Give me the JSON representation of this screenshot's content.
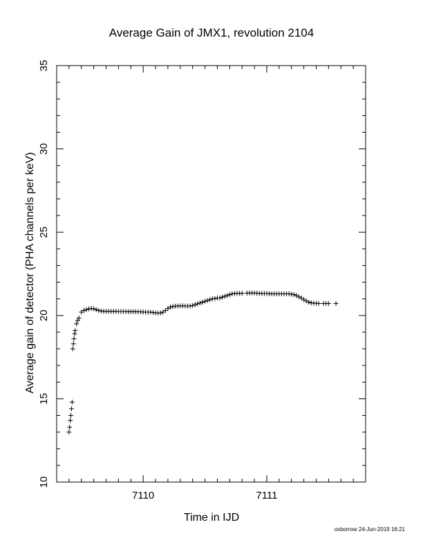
{
  "chart_data": {
    "type": "scatter",
    "title": "Average Gain of JMX1, revolution 2104",
    "xlabel": "Time in IJD",
    "ylabel": "Average gain of detector (PHA channels per keV)",
    "xlim": [
      7109.3,
      7111.8
    ],
    "ylim": [
      10,
      35
    ],
    "x_major_ticks": [
      7110,
      7111
    ],
    "x_minor_tick_step": 0.1,
    "y_major_ticks": [
      10,
      15,
      20,
      25,
      30,
      35
    ],
    "y_minor_tick_step": 1,
    "marker": "plus",
    "grid": false,
    "series": [
      {
        "points": [
          [
            7109.4,
            13.0
          ],
          [
            7109.405,
            13.3
          ],
          [
            7109.41,
            13.7
          ],
          [
            7109.415,
            14.0
          ],
          [
            7109.42,
            14.4
          ],
          [
            7109.425,
            14.8
          ],
          [
            7109.43,
            18.0
          ],
          [
            7109.435,
            18.3
          ],
          [
            7109.44,
            18.6
          ],
          [
            7109.445,
            18.9
          ],
          [
            7109.45,
            19.1
          ],
          [
            7109.46,
            19.5
          ],
          [
            7109.47,
            19.7
          ],
          [
            7109.48,
            19.85
          ],
          [
            7109.5,
            20.2
          ],
          [
            7109.52,
            20.3
          ],
          [
            7109.54,
            20.35
          ],
          [
            7109.56,
            20.4
          ],
          [
            7109.58,
            20.42
          ],
          [
            7109.6,
            20.4
          ],
          [
            7109.62,
            20.35
          ],
          [
            7109.64,
            20.3
          ],
          [
            7109.66,
            20.27
          ],
          [
            7109.68,
            20.25
          ],
          [
            7109.7,
            20.25
          ],
          [
            7109.72,
            20.25
          ],
          [
            7109.74,
            20.25
          ],
          [
            7109.76,
            20.25
          ],
          [
            7109.78,
            20.25
          ],
          [
            7109.8,
            20.24
          ],
          [
            7109.82,
            20.24
          ],
          [
            7109.84,
            20.24
          ],
          [
            7109.86,
            20.24
          ],
          [
            7109.88,
            20.23
          ],
          [
            7109.9,
            20.23
          ],
          [
            7109.92,
            20.23
          ],
          [
            7109.94,
            20.23
          ],
          [
            7109.96,
            20.22
          ],
          [
            7109.98,
            20.22
          ],
          [
            7110.0,
            20.21
          ],
          [
            7110.02,
            20.2
          ],
          [
            7110.04,
            20.2
          ],
          [
            7110.06,
            20.2
          ],
          [
            7110.08,
            20.18
          ],
          [
            7110.1,
            20.16
          ],
          [
            7110.12,
            20.15
          ],
          [
            7110.14,
            20.15
          ],
          [
            7110.16,
            20.2
          ],
          [
            7110.18,
            20.3
          ],
          [
            7110.2,
            20.42
          ],
          [
            7110.22,
            20.5
          ],
          [
            7110.24,
            20.54
          ],
          [
            7110.26,
            20.56
          ],
          [
            7110.28,
            20.57
          ],
          [
            7110.3,
            20.58
          ],
          [
            7110.32,
            20.58
          ],
          [
            7110.34,
            20.57
          ],
          [
            7110.36,
            20.57
          ],
          [
            7110.38,
            20.57
          ],
          [
            7110.4,
            20.6
          ],
          [
            7110.42,
            20.65
          ],
          [
            7110.44,
            20.7
          ],
          [
            7110.46,
            20.75
          ],
          [
            7110.48,
            20.8
          ],
          [
            7110.5,
            20.85
          ],
          [
            7110.52,
            20.9
          ],
          [
            7110.54,
            20.95
          ],
          [
            7110.56,
            21.0
          ],
          [
            7110.58,
            21.02
          ],
          [
            7110.6,
            21.05
          ],
          [
            7110.62,
            21.05
          ],
          [
            7110.64,
            21.1
          ],
          [
            7110.66,
            21.15
          ],
          [
            7110.68,
            21.2
          ],
          [
            7110.7,
            21.25
          ],
          [
            7110.72,
            21.3
          ],
          [
            7110.74,
            21.32
          ],
          [
            7110.76,
            21.33
          ],
          [
            7110.78,
            21.33
          ],
          [
            7110.8,
            21.33
          ],
          [
            7110.84,
            21.34
          ],
          [
            7110.86,
            21.35
          ],
          [
            7110.88,
            21.35
          ],
          [
            7110.9,
            21.35
          ],
          [
            7110.92,
            21.34
          ],
          [
            7110.94,
            21.33
          ],
          [
            7110.96,
            21.32
          ],
          [
            7110.98,
            21.32
          ],
          [
            7111.0,
            21.32
          ],
          [
            7111.02,
            21.31
          ],
          [
            7111.04,
            21.3
          ],
          [
            7111.06,
            21.3
          ],
          [
            7111.08,
            21.3
          ],
          [
            7111.1,
            21.3
          ],
          [
            7111.12,
            21.3
          ],
          [
            7111.14,
            21.3
          ],
          [
            7111.16,
            21.3
          ],
          [
            7111.18,
            21.3
          ],
          [
            7111.2,
            21.28
          ],
          [
            7111.22,
            21.25
          ],
          [
            7111.24,
            21.2
          ],
          [
            7111.26,
            21.12
          ],
          [
            7111.28,
            21.05
          ],
          [
            7111.3,
            20.95
          ],
          [
            7111.32,
            20.87
          ],
          [
            7111.34,
            20.8
          ],
          [
            7111.36,
            20.76
          ],
          [
            7111.38,
            20.74
          ],
          [
            7111.4,
            20.73
          ],
          [
            7111.42,
            20.72
          ],
          [
            7111.46,
            20.72
          ],
          [
            7111.48,
            20.72
          ],
          [
            7111.5,
            20.72
          ],
          [
            7111.56,
            20.72
          ]
        ]
      }
    ]
  },
  "footer": {
    "credit": "oxborrow 24-Jun-2019 16:21"
  }
}
